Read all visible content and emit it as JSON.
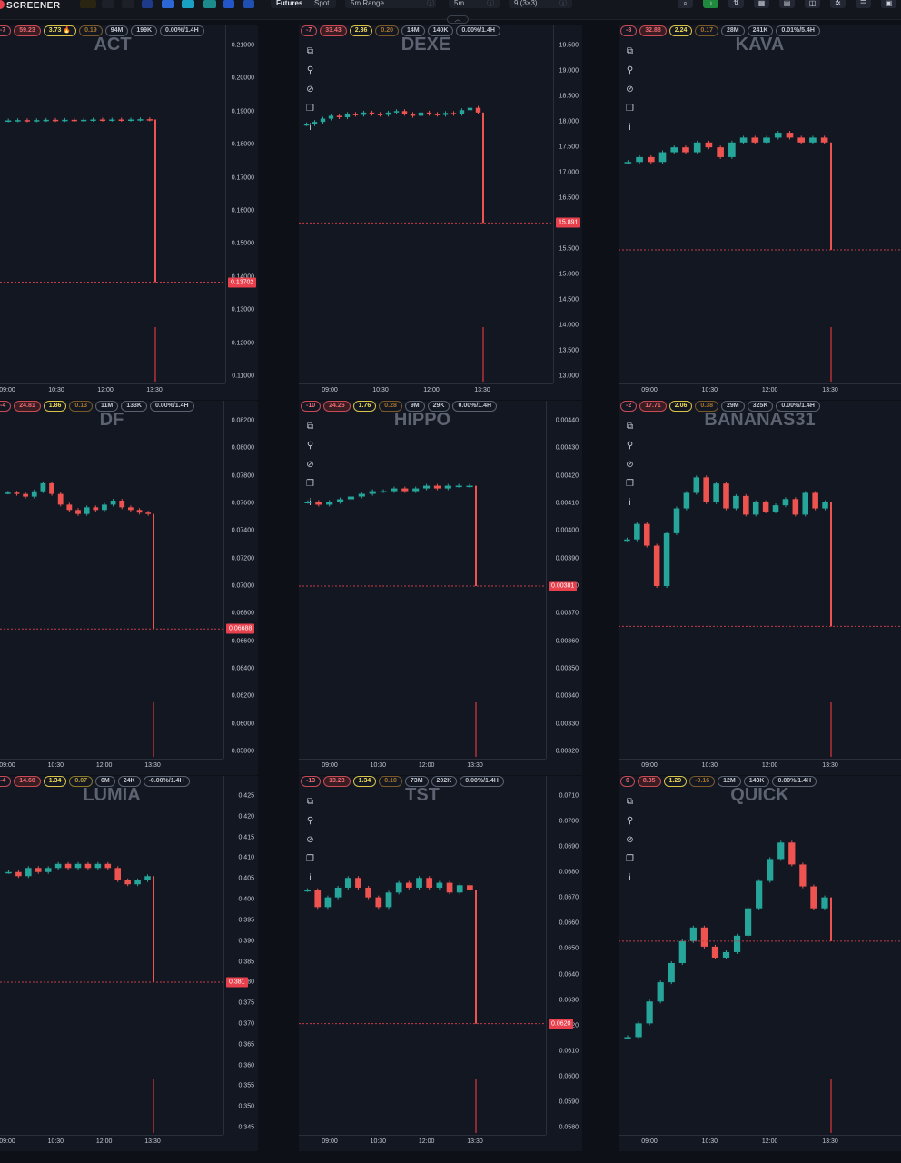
{
  "app": {
    "logo_text": "SCREENER"
  },
  "toolbar": {
    "market_tabs": [
      "Futures",
      "Spot"
    ],
    "range_select": "5m Range",
    "interval": "5m",
    "layout": "9 (3×3)",
    "collapse_icon": "chevron-up-icon"
  },
  "colors": {
    "up": "#26a69a",
    "down": "#ef5350",
    "alert": "#e8414d",
    "background": "#131722"
  },
  "time_labels": [
    "09:00",
    "10:30",
    "12:00",
    "13:30"
  ],
  "panels": [
    {
      "symbol": "ACT",
      "chips": [
        "-7",
        "59.23",
        "3.73 🔥",
        "0.19",
        "94M",
        "199K",
        "0.00%/1.4H"
      ],
      "y_ticks": [
        "0.21000",
        "0.20000",
        "0.19000",
        "0.18000",
        "0.17000",
        "0.16000",
        "0.15000",
        "0.14000",
        "0.13000",
        "0.12000",
        "0.11000"
      ],
      "price": "0.13702",
      "series": {
        "close": [
          0.1891,
          0.1892,
          0.1891,
          0.1892,
          0.1893,
          0.1892,
          0.1893,
          0.1892,
          0.1893,
          0.1894,
          0.1893,
          0.1894,
          0.1893,
          0.1894,
          0.1895,
          0.1894
        ],
        "last": 0.13702,
        "ymin": 0.105,
        "ymax": 0.215
      }
    },
    {
      "symbol": "DEXE",
      "chips": [
        "-7",
        "33.43",
        "2.36",
        "0.20",
        "14M",
        "140K",
        "0.00%/1.4H"
      ],
      "y_ticks": [
        "19.500",
        "19.000",
        "18.500",
        "18.000",
        "17.500",
        "17.000",
        "16.500",
        "16.000",
        "15.500",
        "15.000",
        "14.500",
        "14.000",
        "13.500",
        "13.000"
      ],
      "price": "15.891",
      "series": {
        "close": [
          18.0,
          18.05,
          18.12,
          18.18,
          18.15,
          18.22,
          18.2,
          18.25,
          18.22,
          18.2,
          18.25,
          18.28,
          18.22,
          18.18,
          18.25,
          18.22,
          18.2,
          18.24,
          18.22,
          18.3,
          18.35,
          18.25
        ],
        "last": 15.891,
        "ymin": 12.5,
        "ymax": 19.8
      }
    },
    {
      "symbol": "KAVA",
      "chips": [
        "-8",
        "32.88",
        "2.24",
        "0.17",
        "28M",
        "241K",
        "0.01%/5.4H"
      ],
      "y_ticks": [],
      "price": "",
      "series": {
        "close": [
          0.1,
          0.101,
          0.1,
          0.102,
          0.103,
          0.102,
          0.104,
          0.103,
          0.101,
          0.104,
          0.105,
          0.104,
          0.105,
          0.106,
          0.105,
          0.104,
          0.105,
          0.104
        ],
        "last": 0.082,
        "ymin": 0.055,
        "ymax": 0.125
      }
    },
    {
      "symbol": "DF",
      "chips": [
        "-4",
        "24.81",
        "1.86",
        "0.13",
        "11M",
        "133K",
        "0.00%/1.4H"
      ],
      "y_ticks": [
        "0.08200",
        "0.08000",
        "0.07800",
        "0.07600",
        "0.07400",
        "0.07200",
        "0.07000",
        "0.06800",
        "0.06600",
        "0.06400",
        "0.06200",
        "0.06000",
        "0.05800"
      ],
      "price": "0.06688",
      "series": {
        "close": [
          0.0771,
          0.077,
          0.0768,
          0.0772,
          0.0778,
          0.077,
          0.0762,
          0.0758,
          0.0755,
          0.076,
          0.0758,
          0.0762,
          0.0765,
          0.076,
          0.0758,
          0.0756,
          0.0755
        ],
        "last": 0.06688,
        "ymin": 0.0573,
        "ymax": 0.0829
      }
    },
    {
      "symbol": "HIPPO",
      "chips": [
        "-10",
        "24.26",
        "1.76",
        "0.28",
        "9M",
        "29K",
        "0.00%/1.4H"
      ],
      "y_ticks": [
        "0.00440",
        "0.00430",
        "0.00420",
        "0.00410",
        "0.00400",
        "0.00390",
        "0.00380",
        "0.00370",
        "0.00360",
        "0.00350",
        "0.00340",
        "0.00330",
        "0.00320"
      ],
      "price": "0.00381",
      "series": {
        "close": [
          0.00412,
          0.00411,
          0.00412,
          0.00413,
          0.00414,
          0.00415,
          0.00416,
          0.00416,
          0.00417,
          0.00416,
          0.00417,
          0.00418,
          0.00417,
          0.00418,
          0.00418,
          0.00418
        ],
        "last": 0.00381,
        "ymin": 0.00318,
        "ymax": 0.00444
      }
    },
    {
      "symbol": "BANANAS31",
      "chips": [
        "-2",
        "17.71",
        "2.06",
        "0.38",
        "29M",
        "325K",
        "0.00%/1.4H"
      ],
      "y_ticks": [],
      "price": "",
      "series": {
        "close": [
          0.04,
          0.0405,
          0.0398,
          0.0385,
          0.0402,
          0.041,
          0.0415,
          0.042,
          0.0412,
          0.0418,
          0.041,
          0.0414,
          0.0408,
          0.0412,
          0.0409,
          0.0411,
          0.0413,
          0.0408,
          0.0415,
          0.041,
          0.0412
        ],
        "last": 0.0372,
        "ymin": 0.033,
        "ymax": 0.044
      }
    },
    {
      "symbol": "LUMIA",
      "chips": [
        "-4",
        "14.60",
        "1.34",
        "0.07",
        "6M",
        "24K",
        "-0.00%/1.4H"
      ],
      "y_ticks": [
        "0.425",
        "0.420",
        "0.415",
        "0.410",
        "0.405",
        "0.400",
        "0.395",
        "0.390",
        "0.385",
        "0.380",
        "0.375",
        "0.370",
        "0.365",
        "0.360",
        "0.355",
        "0.350",
        "0.345"
      ],
      "price": "0.381",
      "series": {
        "close": [
          0.408,
          0.407,
          0.409,
          0.408,
          0.409,
          0.41,
          0.409,
          0.41,
          0.409,
          0.41,
          0.409,
          0.406,
          0.405,
          0.406,
          0.407
        ],
        "last": 0.381,
        "ymin": 0.344,
        "ymax": 0.428
      }
    },
    {
      "symbol": "TST",
      "chips": [
        "-13",
        "13.23",
        "1.34",
        "0.10",
        "73M",
        "202K",
        "0.00%/1.4H"
      ],
      "y_ticks": [
        "0.0710",
        "0.0700",
        "0.0690",
        "0.0680",
        "0.0670",
        "0.0660",
        "0.0650",
        "0.0640",
        "0.0630",
        "0.0620",
        "0.0610",
        "0.0600",
        "0.0590",
        "0.0580"
      ],
      "price": "0.0620",
      "series": {
        "close": [
          0.0675,
          0.0668,
          0.0672,
          0.0676,
          0.068,
          0.0676,
          0.0672,
          0.0668,
          0.0674,
          0.0678,
          0.0676,
          0.068,
          0.0676,
          0.0678,
          0.0674,
          0.0677,
          0.0675
        ],
        "last": 0.062,
        "ymin": 0.0575,
        "ymax": 0.0716
      }
    },
    {
      "symbol": "QUICK",
      "chips": [
        "0",
        "8.35",
        "1.29",
        "-0.16",
        "12M",
        "143K",
        "0.00%/1.4H"
      ],
      "y_ticks": [],
      "price": "",
      "series": {
        "close": [
          0.0185,
          0.019,
          0.0198,
          0.0205,
          0.0212,
          0.022,
          0.0225,
          0.0218,
          0.0214,
          0.0216,
          0.0222,
          0.0232,
          0.0242,
          0.025,
          0.0256,
          0.0248,
          0.024,
          0.0232,
          0.0236
        ],
        "last": 0.022,
        "ymin": 0.015,
        "ymax": 0.0275
      }
    }
  ]
}
